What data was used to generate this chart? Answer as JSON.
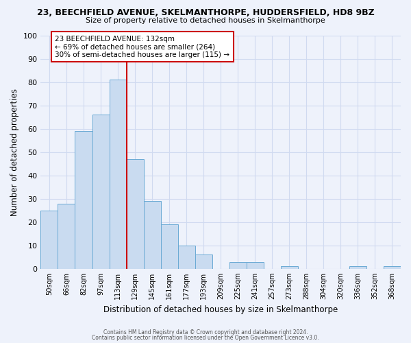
{
  "title": "23, BEECHFIELD AVENUE, SKELMANTHORPE, HUDDERSFIELD, HD8 9BZ",
  "subtitle": "Size of property relative to detached houses in Skelmanthorpe",
  "xlabel": "Distribution of detached houses by size in Skelmanthorpe",
  "ylabel": "Number of detached properties",
  "bar_labels": [
    "50sqm",
    "66sqm",
    "82sqm",
    "97sqm",
    "113sqm",
    "129sqm",
    "145sqm",
    "161sqm",
    "177sqm",
    "193sqm",
    "209sqm",
    "225sqm",
    "241sqm",
    "257sqm",
    "273sqm",
    "288sqm",
    "304sqm",
    "320sqm",
    "336sqm",
    "352sqm",
    "368sqm"
  ],
  "bar_values": [
    25,
    28,
    59,
    66,
    81,
    47,
    29,
    19,
    10,
    6,
    0,
    3,
    3,
    0,
    1,
    0,
    0,
    0,
    1,
    0,
    1
  ],
  "bar_color": "#c9dbf0",
  "bar_edge_color": "#6aaad4",
  "vline_x": 4.5,
  "vline_color": "#cc0000",
  "annotation_title": "23 BEECHFIELD AVENUE: 132sqm",
  "annotation_line1": "← 69% of detached houses are smaller (264)",
  "annotation_line2": "30% of semi-detached houses are larger (115) →",
  "annotation_box_color": "#ffffff",
  "annotation_box_edge": "#cc0000",
  "background_color": "#eef2fb",
  "grid_color": "#d0daf0",
  "ylim": [
    0,
    100
  ],
  "footer1": "Contains HM Land Registry data © Crown copyright and database right 2024.",
  "footer2": "Contains public sector information licensed under the Open Government Licence v3.0."
}
